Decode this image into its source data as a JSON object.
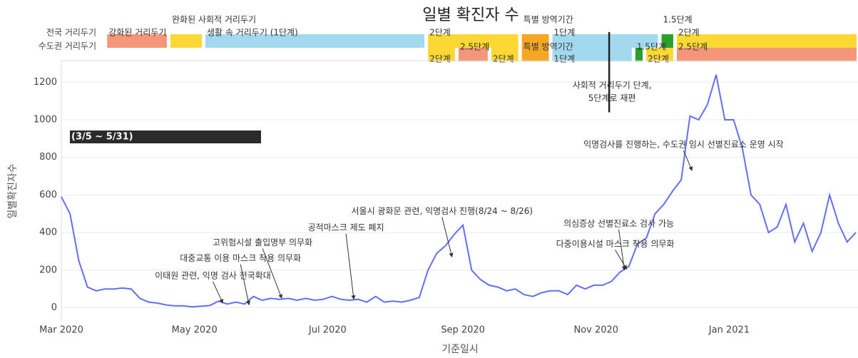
{
  "chart_data": {
    "type": "line",
    "title": "일별 확진자 수",
    "x_label": "기준일시",
    "y_label": "일별확진자수",
    "x": [
      "2020-03-01",
      "2020-03-05",
      "2020-03-09",
      "2020-03-13",
      "2020-03-17",
      "2020-03-21",
      "2020-03-25",
      "2020-03-29",
      "2020-04-02",
      "2020-04-06",
      "2020-04-10",
      "2020-04-14",
      "2020-04-18",
      "2020-04-22",
      "2020-04-26",
      "2020-04-30",
      "2020-05-04",
      "2020-05-08",
      "2020-05-12",
      "2020-05-16",
      "2020-05-20",
      "2020-05-24",
      "2020-05-28",
      "2020-06-01",
      "2020-06-05",
      "2020-06-09",
      "2020-06-13",
      "2020-06-17",
      "2020-06-21",
      "2020-06-25",
      "2020-06-29",
      "2020-07-03",
      "2020-07-07",
      "2020-07-11",
      "2020-07-15",
      "2020-07-19",
      "2020-07-23",
      "2020-07-27",
      "2020-07-31",
      "2020-08-04",
      "2020-08-08",
      "2020-08-12",
      "2020-08-16",
      "2020-08-20",
      "2020-08-24",
      "2020-08-28",
      "2020-09-01",
      "2020-09-05",
      "2020-09-09",
      "2020-09-13",
      "2020-09-17",
      "2020-09-21",
      "2020-09-25",
      "2020-09-29",
      "2020-10-03",
      "2020-10-07",
      "2020-10-11",
      "2020-10-15",
      "2020-10-19",
      "2020-10-23",
      "2020-10-27",
      "2020-10-31",
      "2020-11-04",
      "2020-11-08",
      "2020-11-12",
      "2020-11-16",
      "2020-11-20",
      "2020-11-24",
      "2020-11-28",
      "2020-12-02",
      "2020-12-06",
      "2020-12-10",
      "2020-12-14",
      "2020-12-18",
      "2020-12-22",
      "2020-12-26",
      "2020-12-30",
      "2021-01-03",
      "2021-01-07",
      "2021-01-11",
      "2021-01-15",
      "2021-01-19",
      "2021-01-23",
      "2021-01-27",
      "2021-01-31",
      "2021-02-04",
      "2021-02-08",
      "2021-02-12",
      "2021-02-16",
      "2021-02-20",
      "2021-02-24",
      "2021-02-28"
    ],
    "series": [
      {
        "color": "#636efa",
        "values": [
          590,
          500,
          250,
          110,
          90,
          100,
          100,
          105,
          100,
          50,
          30,
          25,
          15,
          10,
          10,
          5,
          8,
          12,
          35,
          20,
          30,
          20,
          60,
          40,
          50,
          45,
          50,
          40,
          50,
          40,
          45,
          60,
          45,
          40,
          45,
          30,
          60,
          30,
          35,
          30,
          40,
          55,
          200,
          290,
          330,
          390,
          440,
          200,
          150,
          120,
          110,
          90,
          100,
          70,
          60,
          80,
          90,
          90,
          70,
          120,
          100,
          120,
          120,
          140,
          190,
          220,
          340,
          370,
          500,
          550,
          620,
          680,
          1020,
          1000,
          1080,
          1240,
          1000,
          1000,
          850,
          600,
          550,
          400,
          430,
          550,
          350,
          450,
          300,
          400,
          600,
          450,
          350,
          400
        ]
      }
    ],
    "xlim": [
      "2020-03-01",
      "2021-03-01"
    ],
    "xticks": [
      {
        "value": "2020-03-01",
        "label": "Mar 2020"
      },
      {
        "value": "2020-05-01",
        "label": "May 2020"
      },
      {
        "value": "2020-07-01",
        "label": "Jul 2020"
      },
      {
        "value": "2020-09-01",
        "label": "Sep 2020"
      },
      {
        "value": "2020-11-01",
        "label": "Nov 2020"
      },
      {
        "value": "2021-01-01",
        "label": "Jan 2021"
      }
    ],
    "ylim": [
      -70,
      1315
    ],
    "yticks": [
      0,
      200,
      400,
      600,
      800,
      1000,
      1200
    ],
    "grid": true,
    "tracks": [
      {
        "name": "전국 거리두기",
        "phases": [
          {
            "label": "강화된 거리두기",
            "start": "2020-03-22",
            "end": "2020-04-19",
            "color": "#f4967a"
          },
          {
            "label": "완화된 사회적 거리두기",
            "start": "2020-04-20",
            "end": "2020-05-05",
            "color": "#fcd835"
          },
          {
            "label": "생활 속 거리두기 (1단계)",
            "start": "2020-05-06",
            "end": "2020-08-15",
            "color": "#a3d9ef"
          },
          {
            "label": "2단계",
            "start": "2020-08-16",
            "end": "2020-09-27",
            "color": "#fcd835"
          },
          {
            "label": "특별 방역기간",
            "start": "2020-09-28",
            "end": "2020-10-11",
            "color": "#f5a623"
          },
          {
            "label": "1단계",
            "start": "2020-10-12",
            "end": "2020-11-30",
            "color": "#a3d9ef"
          },
          {
            "label": "1.5단계",
            "start": "2020-12-01",
            "end": "2020-12-07",
            "color": "#2ca02c"
          },
          {
            "label": "2단계",
            "start": "2020-12-08",
            "end": "2021-03-01",
            "color": "#fcd835"
          }
        ]
      },
      {
        "name": "수도권 거리두기",
        "phases": [
          {
            "label": "2단계",
            "start": "2020-08-16",
            "end": "2020-08-29",
            "color": "#fcd835"
          },
          {
            "label": "2.5단계",
            "start": "2020-08-30",
            "end": "2020-09-13",
            "color": "#f4967a"
          },
          {
            "label": "2단계",
            "start": "2020-09-14",
            "end": "2020-09-27",
            "color": "#fcd835"
          },
          {
            "label": "특별 방역기간",
            "start": "2020-09-28",
            "end": "2020-10-11",
            "color": "#f5a623"
          },
          {
            "label": "1단계",
            "start": "2020-10-12",
            "end": "2020-11-18",
            "color": "#a3d9ef"
          },
          {
            "label": "1.5단계",
            "start": "2020-11-19",
            "end": "2020-11-23",
            "color": "#2ca02c"
          },
          {
            "label": "2단계",
            "start": "2020-11-24",
            "end": "2020-12-07",
            "color": "#fcd835"
          },
          {
            "label": "2.5단계",
            "start": "2020-12-08",
            "end": "2021-03-01",
            "color": "#f4967a"
          }
        ]
      }
    ],
    "annotations": [
      {
        "text": "이태원 관련, 익명 검사 전국확대",
        "x": "2020-05-14",
        "y": 25
      },
      {
        "text": "대중교통 이용 마스크 착용 의무화",
        "x": "2020-05-26",
        "y": 15
      },
      {
        "text": "고위험시설 출입명부 의무화",
        "x": "2020-06-10",
        "y": 50
      },
      {
        "text": "공적마스크 제도 폐지",
        "x": "2020-07-13",
        "y": 45
      },
      {
        "text": "서울시 광화문 관련, 익명검사 진행(8/24 ~ 8/26)",
        "x": "2020-08-27",
        "y": 270
      },
      {
        "text": "의심증상 선별진료소 검사 가능",
        "x": "2020-11-14",
        "y": 200
      },
      {
        "text": "다중이용시설 마스크 착용 의무화",
        "x": "2020-11-15",
        "y": 205
      },
      {
        "text": "익명검사를 진행하는, 수도권 임시 선별진료소 운영 시작",
        "x": "2020-12-15",
        "y": 730
      }
    ],
    "marker_line": {
      "lines": [
        "사회적 거리두기 단계,",
        "5단계로 재편"
      ],
      "x": "2020-11-07",
      "y": 1040
    },
    "box_label": "(3/5 ~ 5/31)"
  }
}
